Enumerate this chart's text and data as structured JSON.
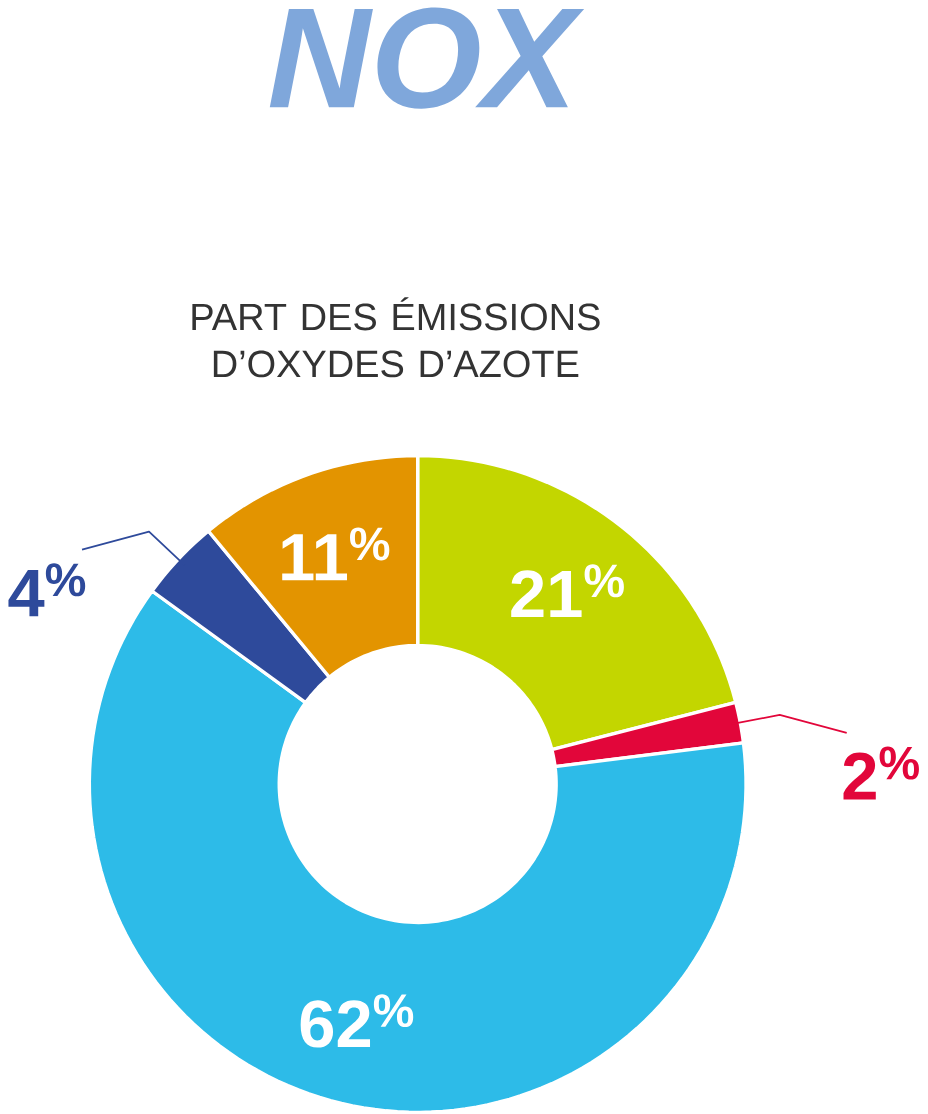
{
  "chart_data": {
    "type": "donut",
    "title": "NOX",
    "subtitle": "PART DES ÉMISSIONS D’OXYDES D’AZOTE",
    "categories": [
      null,
      null,
      null,
      null,
      null
    ],
    "values": [
      21,
      2,
      62,
      4,
      11
    ],
    "colors": [
      "#c3d600",
      "#e2063a",
      "#2dbbe8",
      "#2e4a9b",
      "#e39400"
    ],
    "value_labels": [
      "21$^{%}$",
      "2$^{%}$",
      "62$^{%}$",
      "4$^{%}$",
      "11$^{%}$"
    ]
  }
}
